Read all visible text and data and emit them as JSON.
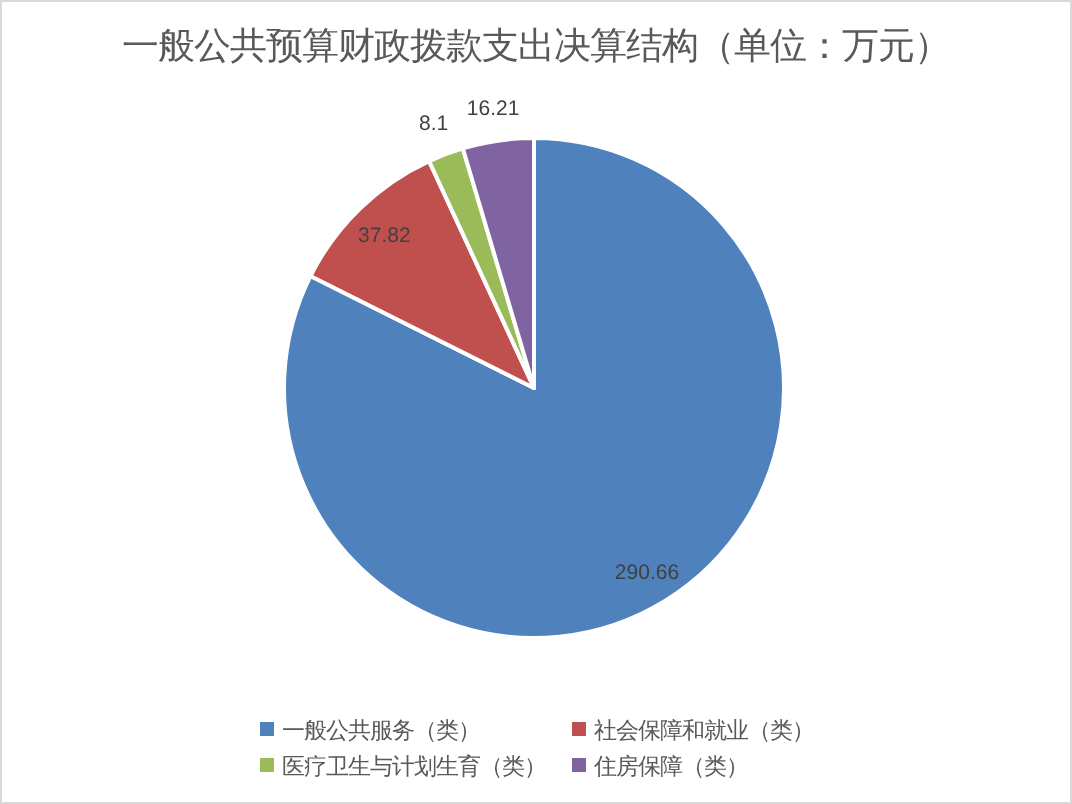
{
  "chart_data": {
    "type": "pie",
    "title": "一般公共预算财政拨款支出决算结构（单位：万元）",
    "categories": [
      "一般公共服务（类）",
      "社会保障和就业（类）",
      "医疗卫生与计划生育（类）",
      "住房保障（类）"
    ],
    "values": [
      290.66,
      37.82,
      8.1,
      16.21
    ],
    "colors": [
      "#4f81bd",
      "#c0504d",
      "#9bbb59",
      "#8064a2"
    ],
    "data_labels": true,
    "legend": "bottom"
  }
}
